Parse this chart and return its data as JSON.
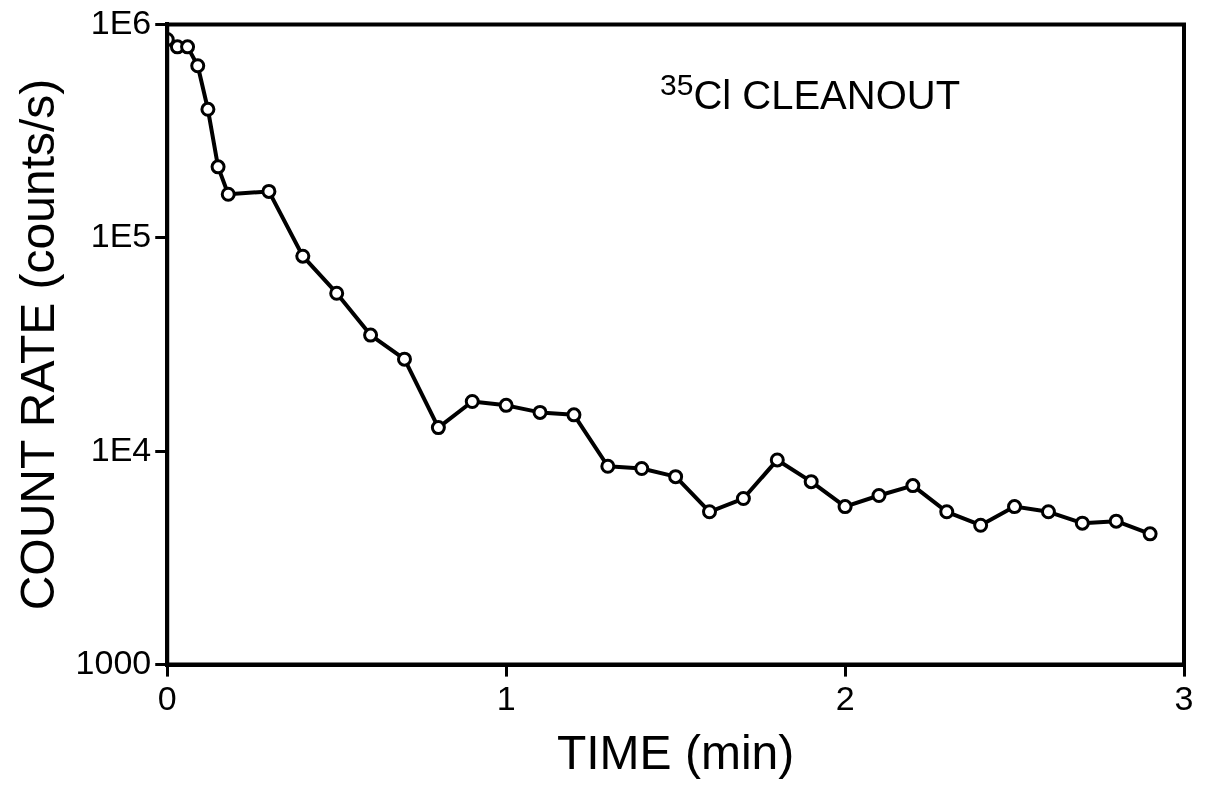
{
  "chart_data": {
    "type": "line",
    "xlabel": "TIME (min)",
    "ylabel": "COUNT RATE (counts/s)",
    "annotations": [
      "$^{35}$Cl  CLEANOUT"
    ],
    "x": [
      0,
      0.03,
      0.06,
      0.09,
      0.12,
      0.15,
      0.18,
      0.3,
      0.4,
      0.5,
      0.6,
      0.7,
      0.8,
      0.9,
      1.0,
      1.1,
      1.2,
      1.3,
      1.4,
      1.5,
      1.6,
      1.7,
      1.8,
      1.9,
      2.0,
      2.1,
      2.2,
      2.3,
      2.4,
      2.5,
      2.6,
      2.7,
      2.8,
      2.9
    ],
    "values": [
      850000,
      785000,
      785000,
      640000,
      400000,
      215000,
      160000,
      165000,
      82000,
      55000,
      35000,
      27000,
      12900,
      17100,
      16400,
      15200,
      14800,
      8500,
      8300,
      7600,
      5200,
      6000,
      9100,
      7200,
      5500,
      6200,
      6900,
      5200,
      4500,
      5500,
      5200,
      4600,
      4700,
      4100
    ],
    "color": "#000000",
    "marker": "circle",
    "line_style": "solid",
    "log": "y",
    "grid": false,
    "legend": false,
    "xlim": [
      0,
      3
    ],
    "xticks": [
      0,
      1,
      2,
      3
    ],
    "ylim": [
      1000,
      1000000
    ],
    "yticks": [
      {
        "value": 1000,
        "label": "1000"
      },
      {
        "value": 10000,
        "label": "1E4"
      },
      {
        "value": 100000,
        "label": "1E5"
      },
      {
        "value": 1000000,
        "label": "1E6"
      }
    ]
  }
}
